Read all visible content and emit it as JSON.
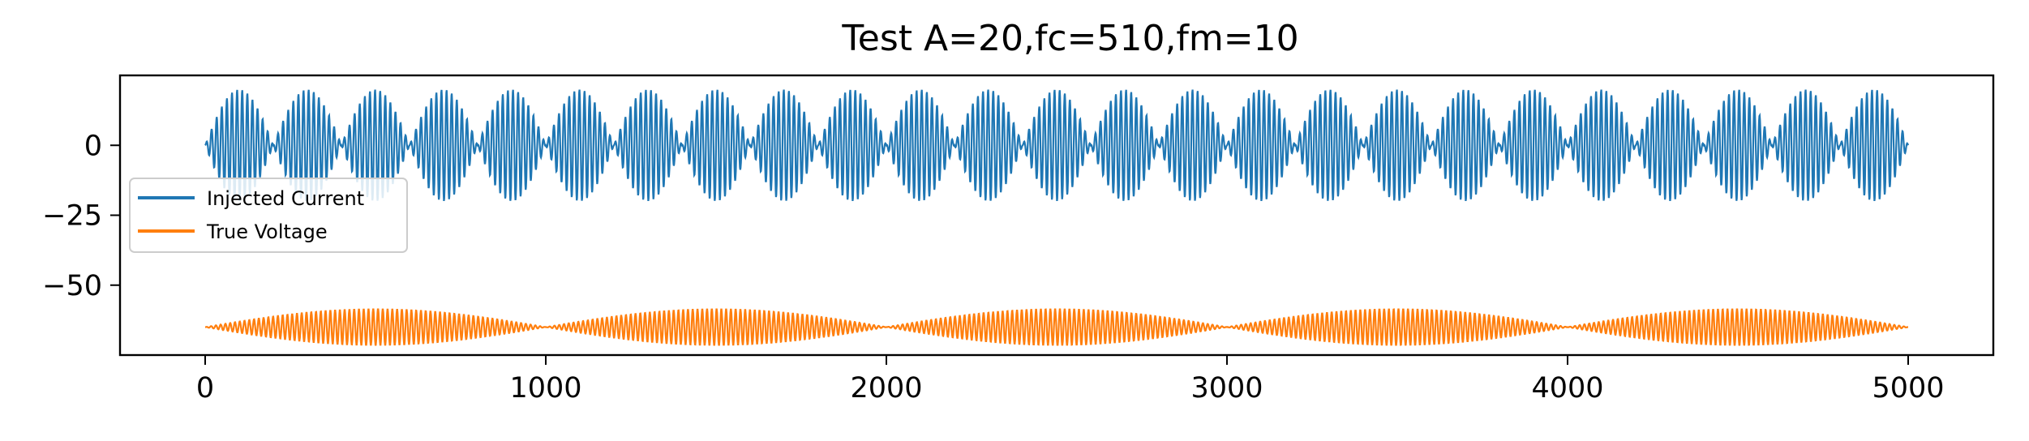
{
  "chart_data": {
    "type": "line",
    "title": "Test A=20,fc=510,fm=10",
    "xlabel": "",
    "ylabel": "",
    "xlim": [
      -250,
      5250
    ],
    "ylim": [
      -75,
      25
    ],
    "x_ticks": [
      0,
      1000,
      2000,
      3000,
      4000,
      5000
    ],
    "x_tick_labels": [
      "0",
      "1000",
      "2000",
      "3000",
      "4000",
      "5000"
    ],
    "y_ticks": [
      0,
      -25,
      -50
    ],
    "y_tick_labels": [
      "0",
      "−25",
      "−50"
    ],
    "grid": false,
    "legend_position": "center-left",
    "series": [
      {
        "name": "Injected Current",
        "color": "#1f77b4",
        "x_range": [
          0,
          5000
        ],
        "center": 0,
        "envelope_period": 200,
        "peak_max": 20,
        "peak_min": -20,
        "description_shape": "amplitude-modulated oscillation"
      },
      {
        "name": "True Voltage",
        "color": "#ff7f0e",
        "x_range": [
          0,
          5000
        ],
        "center": -65,
        "envelope_period": 1000,
        "half_amplitude": 6.5,
        "description_shape": "amplitude-modulated oscillation"
      }
    ]
  }
}
